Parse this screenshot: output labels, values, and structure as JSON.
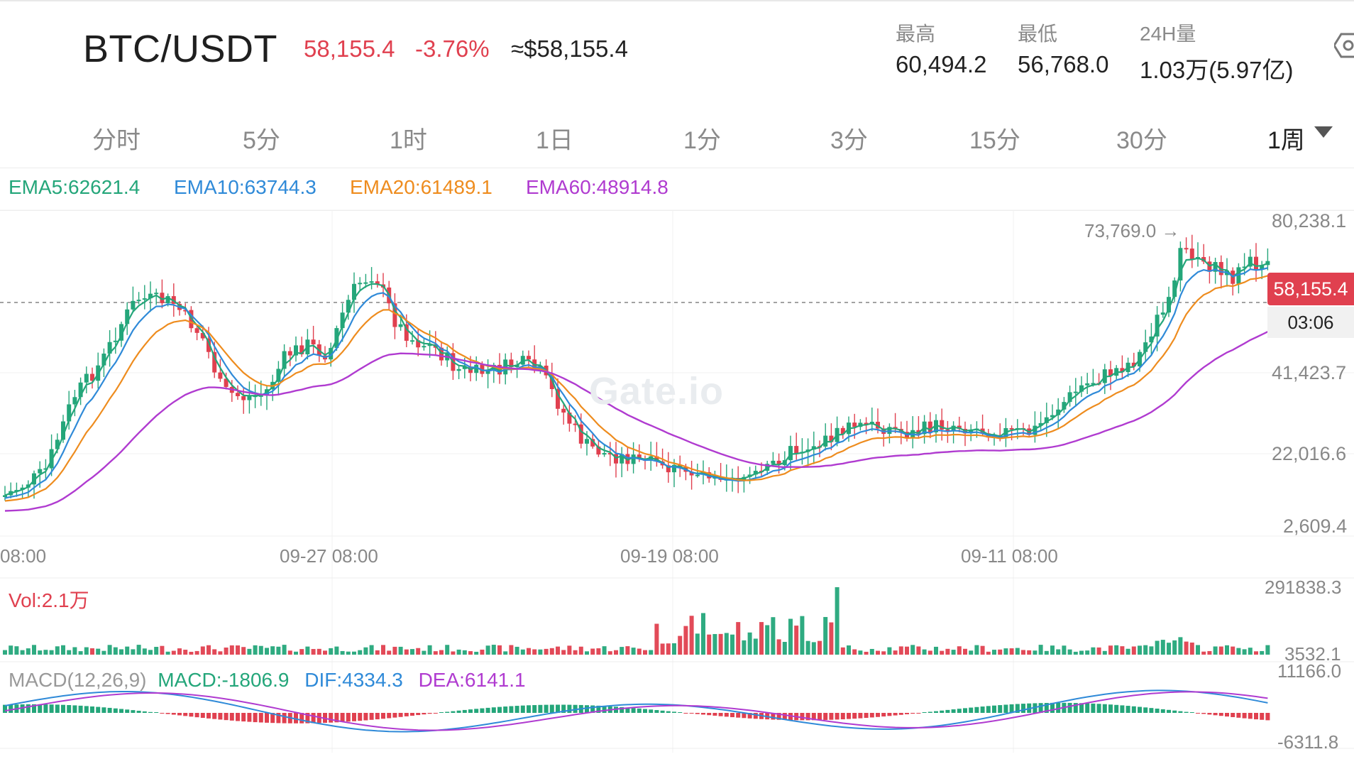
{
  "header": {
    "pair": "BTC/USDT",
    "price": "58,155.4",
    "change": "-3.76%",
    "approx_usd": "≈$58,155.4",
    "high_label": "最高",
    "high_value": "60,494.2",
    "low_label": "最低",
    "low_value": "56,768.0",
    "vol_label": "24H量",
    "vol_value": "1.03万(5.97亿)"
  },
  "tabs": [
    "分时",
    "5分",
    "1时",
    "1日",
    "1分",
    "3分",
    "15分",
    "30分",
    "1周"
  ],
  "active_tab": "1周",
  "ema": {
    "ema5": "EMA5:62621.4",
    "ema10": "EMA10:63744.3",
    "ema20": "EMA20:61489.1",
    "ema60": "EMA60:48914.8"
  },
  "colors": {
    "up": "#24a67a",
    "down": "#e0404f",
    "ema5": "#24a67a",
    "ema10": "#2f8ad8",
    "ema20": "#ee8c1e",
    "ema60": "#b03bd0"
  },
  "chart": {
    "y_labels": [
      "80,238.1",
      "41,423.7",
      "22,016.6",
      "2,609.4"
    ],
    "x_labels": [
      "08:00",
      "09-27 08:00",
      "09-19 08:00",
      "09-11 08:00"
    ],
    "peak_label": "73,769.0 →",
    "current_price": "58,155.4",
    "countdown": "03:06",
    "watermark": "Gate.io"
  },
  "volume": {
    "label": "Vol:2.1万",
    "max_label": "291838.3",
    "min_label": "3532.1"
  },
  "macd": {
    "title": "MACD(12,26,9)",
    "macd": "MACD:-1806.9",
    "dif": "DIF:4334.3",
    "dea": "DEA:6141.1",
    "max_label": "11166.0",
    "min_label": "-6311.8"
  }
}
